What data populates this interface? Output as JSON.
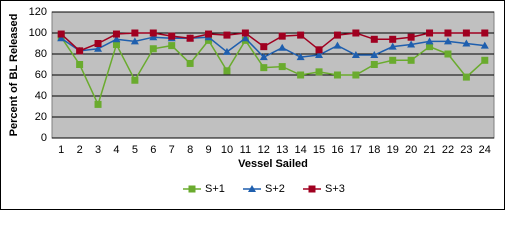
{
  "chart_data": {
    "type": "line",
    "y_label": "Percent of BL Released",
    "x_label": "Vessel Sailed",
    "categories": [
      "1",
      "2",
      "3",
      "4",
      "5",
      "6",
      "7",
      "8",
      "9",
      "10",
      "11",
      "12",
      "13",
      "14",
      "15",
      "16",
      "17",
      "18",
      "19",
      "20",
      "21",
      "22",
      "23",
      "24"
    ],
    "series": [
      {
        "name": "S+1",
        "color": "#6aab2e",
        "marker": "square",
        "values": [
          96,
          70,
          32,
          89,
          55,
          85,
          88,
          71,
          93,
          64,
          93,
          67,
          68,
          60,
          63,
          60,
          60,
          70,
          74,
          74,
          87,
          80,
          58,
          74
        ]
      },
      {
        "name": "S+2",
        "color": "#1f5fae",
        "marker": "triangle",
        "values": [
          95,
          83,
          85,
          94,
          92,
          96,
          95,
          95,
          96,
          82,
          95,
          77,
          86,
          77,
          79,
          88,
          79,
          79,
          87,
          89,
          92,
          92,
          90,
          88
        ]
      },
      {
        "name": "S+3",
        "color": "#a00020",
        "marker": "square",
        "values": [
          99,
          83,
          90,
          99,
          100,
          100,
          97,
          95,
          99,
          98,
          100,
          87,
          97,
          98,
          84,
          98,
          100,
          94,
          94,
          96,
          100,
          100,
          100,
          100
        ]
      }
    ],
    "ylim": [
      0,
      120
    ],
    "yticks": [
      0,
      20,
      40,
      60,
      80,
      100,
      120
    ],
    "grid": true,
    "legend": "bottom"
  }
}
